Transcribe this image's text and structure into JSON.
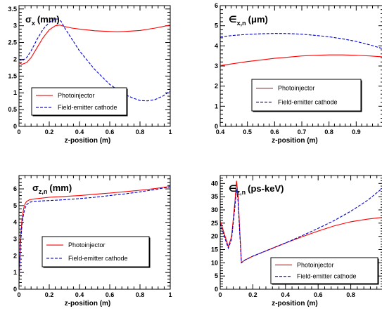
{
  "chart_data": [
    {
      "type": "line",
      "title": "σ",
      "title_sub": "x",
      "title_unit": "(mm)",
      "xlabel": "z-position (m)",
      "ylabel": "",
      "xlim": [
        0,
        1
      ],
      "ylim": [
        0,
        3.6
      ],
      "xticks": [
        "0",
        "0.2",
        "0.4",
        "0.6",
        "0.8",
        "1"
      ],
      "yticks": [
        "0",
        "0.5",
        "1",
        "1.5",
        "2",
        "2.5",
        "3",
        "3.5"
      ],
      "legend_position": "bottom-left",
      "series": [
        {
          "name": "Photoinjector",
          "color": "#ff0000",
          "dash": "solid",
          "x": [
            0,
            0.02,
            0.05,
            0.08,
            0.12,
            0.16,
            0.2,
            0.24,
            0.27,
            0.3,
            0.35,
            0.4,
            0.5,
            0.6,
            0.65,
            0.7,
            0.8,
            0.9,
            1.0
          ],
          "y": [
            1.9,
            1.85,
            1.9,
            2.05,
            2.35,
            2.65,
            2.88,
            3.0,
            3.02,
            2.98,
            2.93,
            2.9,
            2.85,
            2.83,
            2.82,
            2.83,
            2.86,
            2.93,
            3.02
          ]
        },
        {
          "name": "Field-emitter cathode",
          "color": "#0000cc",
          "dash": "dashed",
          "x": [
            0,
            0.02,
            0.05,
            0.08,
            0.12,
            0.16,
            0.2,
            0.24,
            0.26,
            0.28,
            0.3,
            0.35,
            0.4,
            0.5,
            0.6,
            0.7,
            0.75,
            0.8,
            0.85,
            0.9,
            0.95,
            1.0
          ],
          "y": [
            2.0,
            1.95,
            2.05,
            2.25,
            2.6,
            2.9,
            3.1,
            3.2,
            3.2,
            3.12,
            2.95,
            2.6,
            2.25,
            1.7,
            1.25,
            0.95,
            0.85,
            0.77,
            0.76,
            0.8,
            0.9,
            1.05
          ]
        }
      ]
    },
    {
      "type": "line",
      "title": "∈",
      "title_sub": "x,n",
      "title_unit": "(μm)",
      "xlabel": "z-position (m)",
      "ylabel": "",
      "xlim": [
        0.4,
        1.0
      ],
      "ylim": [
        0,
        6
      ],
      "xticks": [
        "0.4",
        "0.5",
        "0.6",
        "0.7",
        "0.8",
        "0.9",
        "1"
      ],
      "yticks": [
        "0",
        "1",
        "2",
        "3",
        "4",
        "5",
        "6"
      ],
      "legend_position": "bottom-center",
      "series": [
        {
          "name": "Photoinjector",
          "color": "#ff0000",
          "dash": "solid",
          "x": [
            0.4,
            0.45,
            0.5,
            0.55,
            0.6,
            0.65,
            0.7,
            0.75,
            0.8,
            0.85,
            0.9,
            0.95,
            1.0
          ],
          "y": [
            3.02,
            3.12,
            3.22,
            3.3,
            3.38,
            3.44,
            3.5,
            3.53,
            3.55,
            3.55,
            3.53,
            3.5,
            3.45
          ]
        },
        {
          "name": "Field-emitter cathode",
          "color": "#0000cc",
          "dash": "dashed",
          "x": [
            0.4,
            0.45,
            0.5,
            0.55,
            0.6,
            0.65,
            0.7,
            0.75,
            0.8,
            0.85,
            0.9,
            0.95,
            1.0
          ],
          "y": [
            4.45,
            4.52,
            4.57,
            4.6,
            4.62,
            4.61,
            4.58,
            4.52,
            4.45,
            4.35,
            4.22,
            4.05,
            3.85
          ]
        }
      ]
    },
    {
      "type": "line",
      "title": "σ",
      "title_sub": "z,n",
      "title_unit": "(mm)",
      "xlabel": "z-position (m)",
      "ylabel": "",
      "xlim": [
        0,
        1
      ],
      "ylim": [
        0,
        6.8
      ],
      "xticks": [
        "0",
        "0.2",
        "0.4",
        "0.6",
        "0.8",
        "1"
      ],
      "yticks": [
        "0",
        "1",
        "2",
        "3",
        "4",
        "5",
        "6"
      ],
      "legend_position": "bottom-right",
      "series": [
        {
          "name": "Photoinjector",
          "color": "#ff0000",
          "dash": "solid",
          "x": [
            0,
            0.005,
            0.01,
            0.02,
            0.03,
            0.04,
            0.05,
            0.07,
            0.1,
            0.15,
            0.2,
            0.3,
            0.4,
            0.5,
            0.6,
            0.7,
            0.8,
            0.9,
            1.0
          ],
          "y": [
            0.3,
            1.8,
            3.0,
            4.2,
            4.8,
            5.1,
            5.25,
            5.35,
            5.4,
            5.45,
            5.5,
            5.55,
            5.6,
            5.68,
            5.75,
            5.83,
            5.92,
            6.02,
            6.15
          ]
        },
        {
          "name": "Field-emitter cathode",
          "color": "#0000cc",
          "dash": "dashed",
          "x": [
            0,
            0.005,
            0.01,
            0.02,
            0.03,
            0.04,
            0.05,
            0.07,
            0.1,
            0.15,
            0.2,
            0.3,
            0.4,
            0.5,
            0.6,
            0.7,
            0.8,
            0.9,
            1.0
          ],
          "y": [
            0.3,
            1.6,
            2.7,
            3.9,
            4.5,
            4.85,
            5.05,
            5.2,
            5.25,
            5.28,
            5.3,
            5.35,
            5.42,
            5.5,
            5.6,
            5.7,
            5.82,
            5.96,
            6.12
          ]
        }
      ]
    },
    {
      "type": "line",
      "title": "∈",
      "title_sub": "z,n",
      "title_unit": "(ps-keV)",
      "xlabel": "z-position (m)",
      "ylabel": "",
      "xlim": [
        0,
        1
      ],
      "ylim": [
        0,
        43
      ],
      "xticks": [
        "0",
        "0.2",
        "0.4",
        "0.6",
        "0.8",
        "1"
      ],
      "yticks": [
        "0",
        "5",
        "10",
        "15",
        "20",
        "25",
        "30",
        "35",
        "40"
      ],
      "legend_position": "bottom-right",
      "series": [
        {
          "name": "Photoinjector",
          "color": "#ff0000",
          "dash": "solid",
          "x": [
            0,
            0.01,
            0.03,
            0.05,
            0.07,
            0.09,
            0.1,
            0.11,
            0.12,
            0.13,
            0.15,
            0.2,
            0.3,
            0.4,
            0.5,
            0.6,
            0.7,
            0.8,
            0.9,
            1.0
          ],
          "y": [
            26,
            24,
            20,
            16,
            20,
            33,
            41,
            35,
            22,
            10,
            11,
            12.5,
            15,
            17.5,
            19.8,
            22,
            24,
            25.5,
            26.5,
            27.2
          ]
        },
        {
          "name": "Field-emitter cathode",
          "color": "#0000cc",
          "dash": "dashed",
          "x": [
            0,
            0.01,
            0.03,
            0.05,
            0.07,
            0.09,
            0.1,
            0.11,
            0.12,
            0.13,
            0.15,
            0.2,
            0.3,
            0.4,
            0.5,
            0.6,
            0.7,
            0.8,
            0.9,
            1.0
          ],
          "y": [
            25,
            23,
            19,
            15.5,
            19,
            31,
            38,
            33,
            21,
            10,
            11,
            12.5,
            15,
            17.5,
            20.2,
            23,
            26,
            29.5,
            33.5,
            38.5
          ]
        }
      ]
    }
  ]
}
